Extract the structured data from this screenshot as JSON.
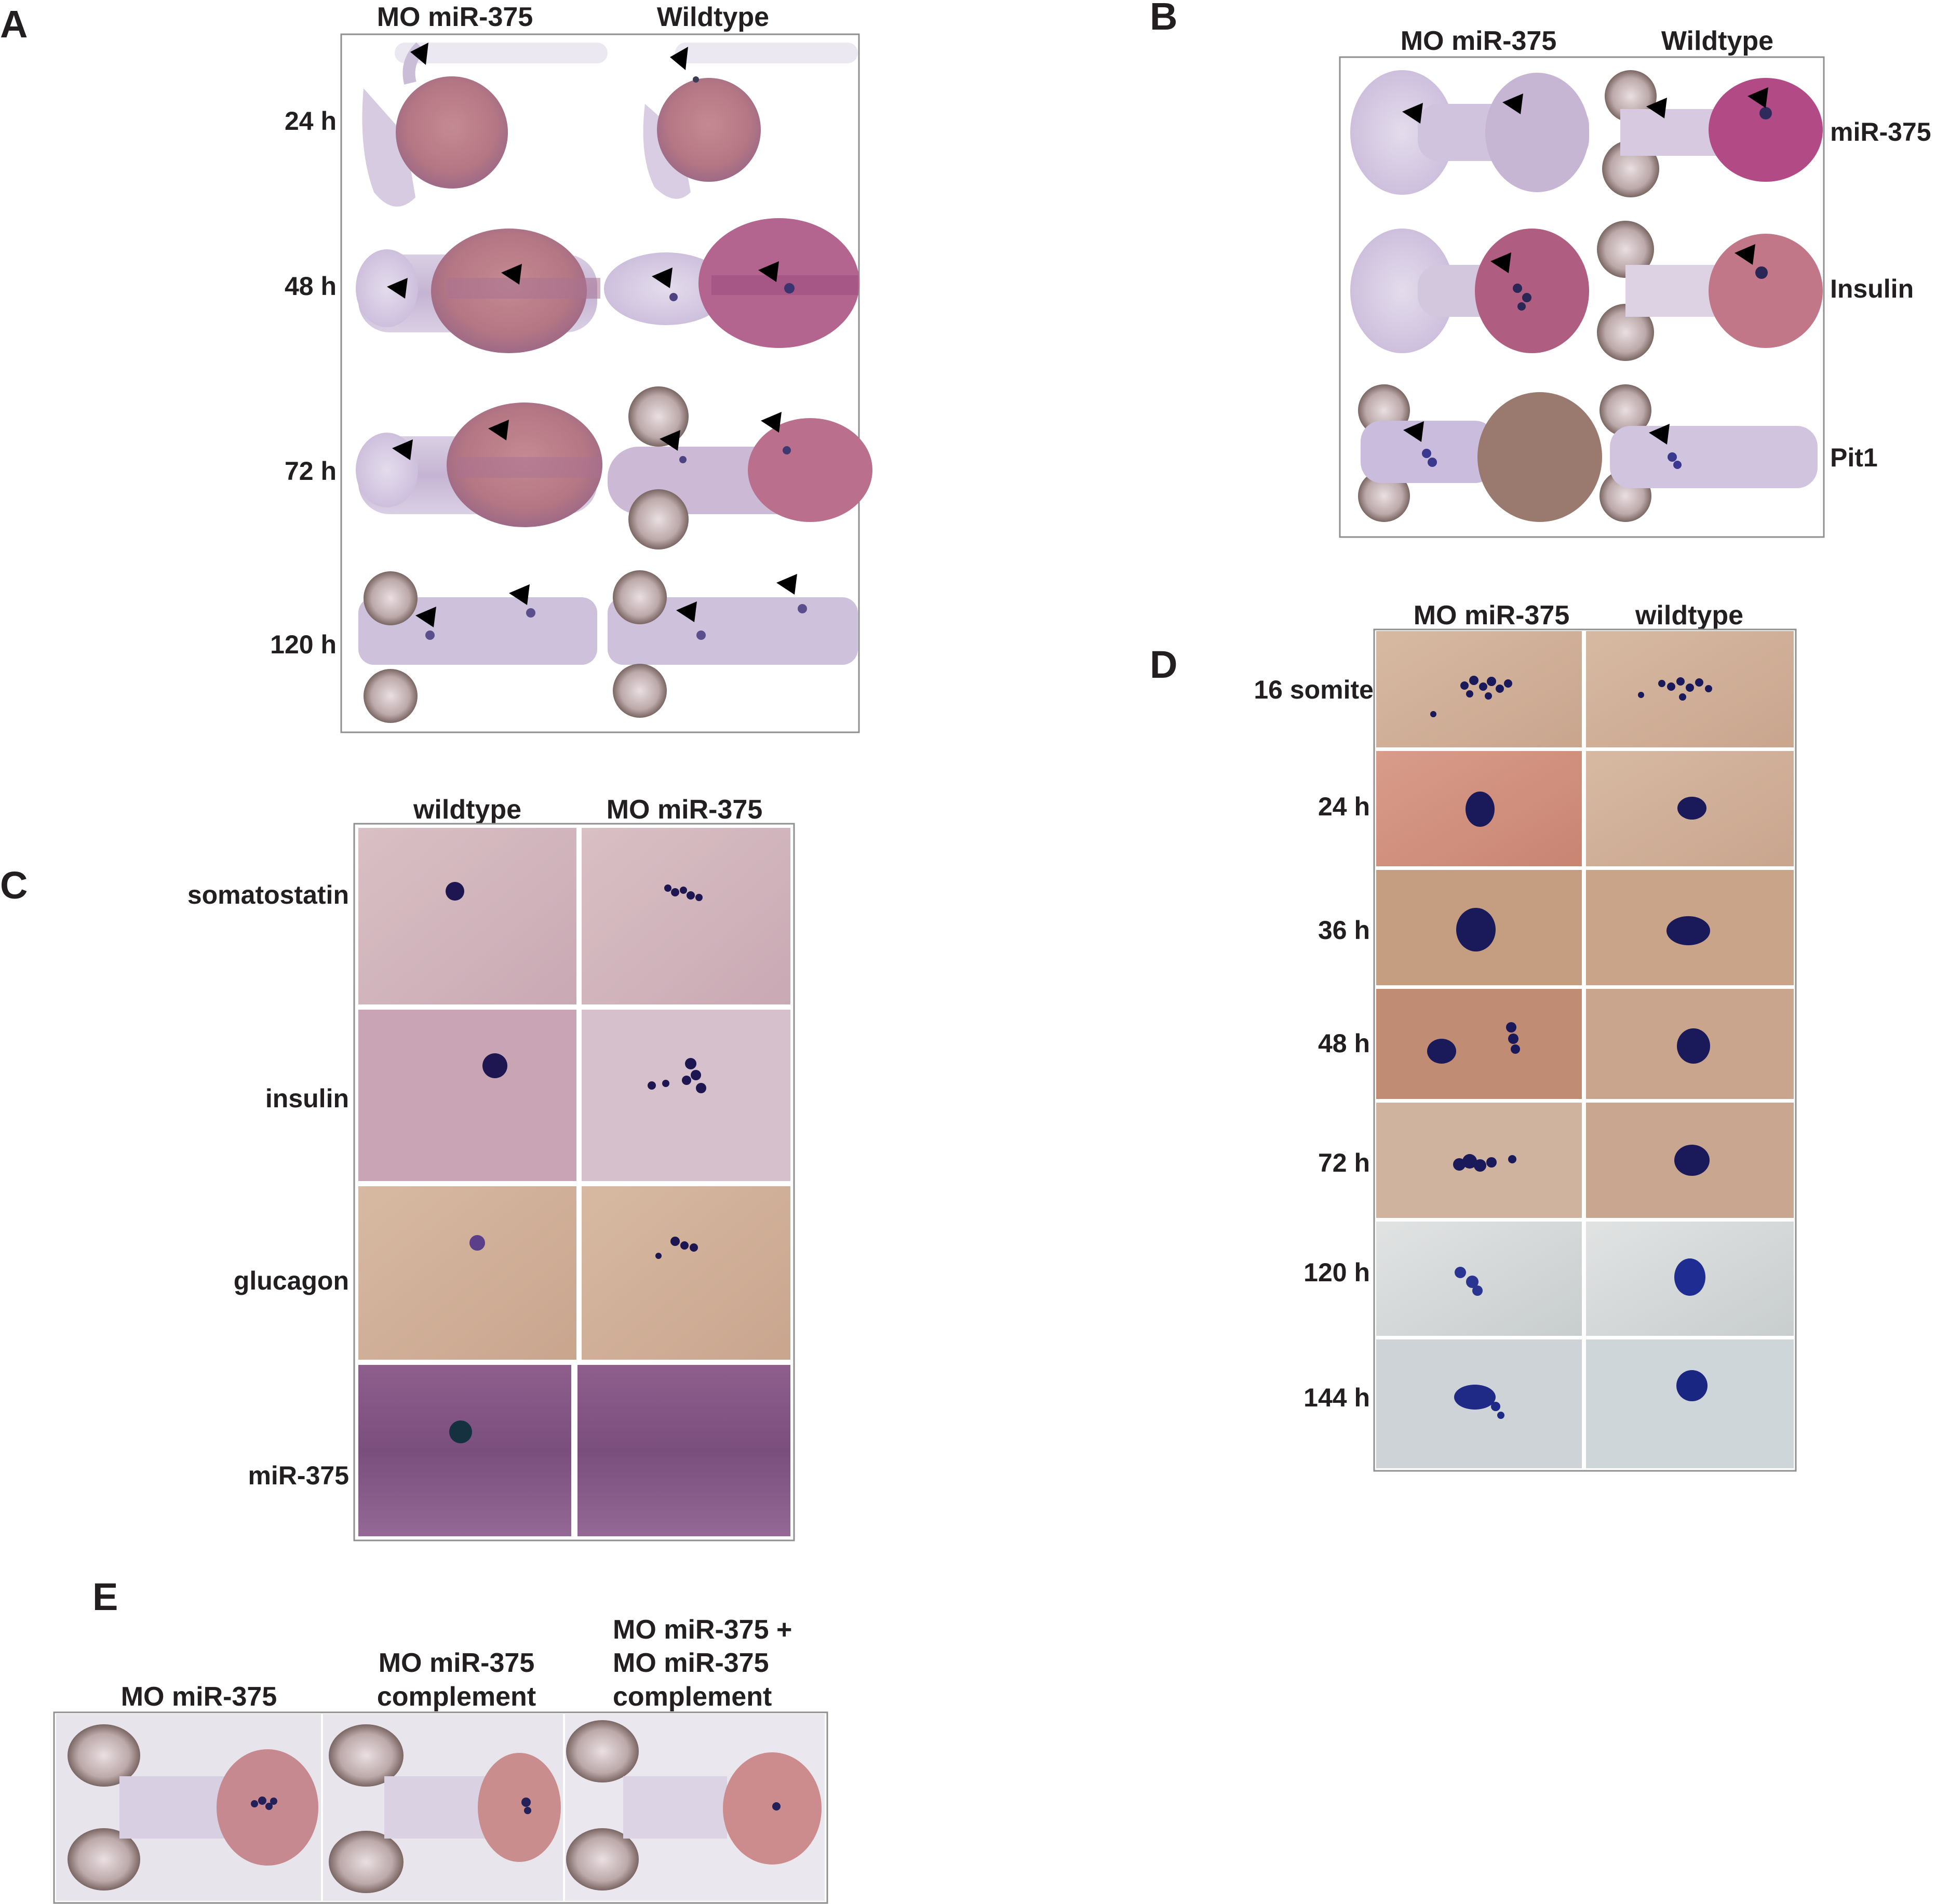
{
  "panels": {
    "A": {
      "letter": "A",
      "columns": [
        "MO miR-375",
        "Wildtype"
      ],
      "rows": [
        "24 h",
        "48 h",
        "72 h",
        "120 h"
      ]
    },
    "B": {
      "letter": "B",
      "columns": [
        "MO miR-375",
        "Wildtype"
      ],
      "rows": [
        "miR-375",
        "Insulin",
        "Pit1"
      ]
    },
    "C": {
      "letter": "C",
      "columns": [
        "wildtype",
        "MO miR-375"
      ],
      "rows": [
        "somatostatin",
        "insulin",
        "glucagon",
        "miR-375"
      ]
    },
    "D": {
      "letter": "D",
      "columns": [
        "MO miR-375",
        "wildtype"
      ],
      "rows": [
        "16 somite",
        "24 h",
        "36 h",
        "48 h",
        "72 h",
        "120 h",
        "144 h"
      ]
    },
    "E": {
      "letter": "E",
      "columns": [
        [
          "MO miR-375"
        ],
        [
          "MO miR-375",
          "complement"
        ],
        [
          "MO miR-375 +",
          "MO miR-375",
          "complement"
        ]
      ]
    }
  },
  "colors": {
    "text": "#231f20",
    "purple_stain": "#b07f9c",
    "blue_signal": "#1a1650",
    "frame": "#8f8f8f"
  }
}
